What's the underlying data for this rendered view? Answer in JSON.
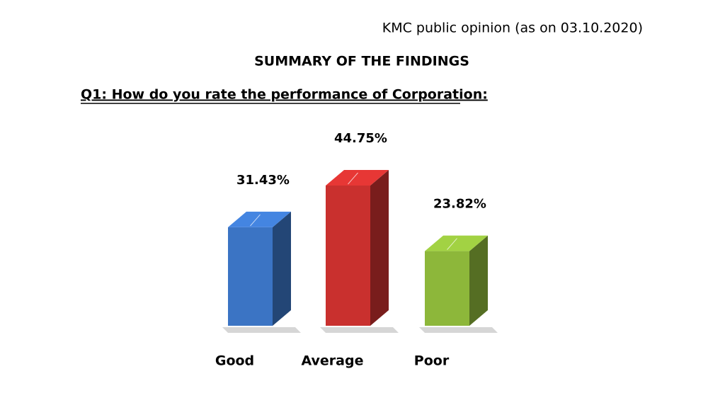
{
  "header": {
    "source": "KMC public opinion (as on 03.10.2020)",
    "heading": "SUMMARY OF THE FINDINGS"
  },
  "chart_data": {
    "type": "bar3d",
    "title": "Q1: How do you rate the performance of Corporation:",
    "categories": [
      "Good",
      "Average",
      "Poor"
    ],
    "values": [
      31.43,
      44.75,
      23.82
    ],
    "value_labels": [
      "31.43%",
      "44.75%",
      "23.82%"
    ],
    "colors": [
      "#3b74c4",
      "#c9302e",
      "#8db73a"
    ]
  }
}
